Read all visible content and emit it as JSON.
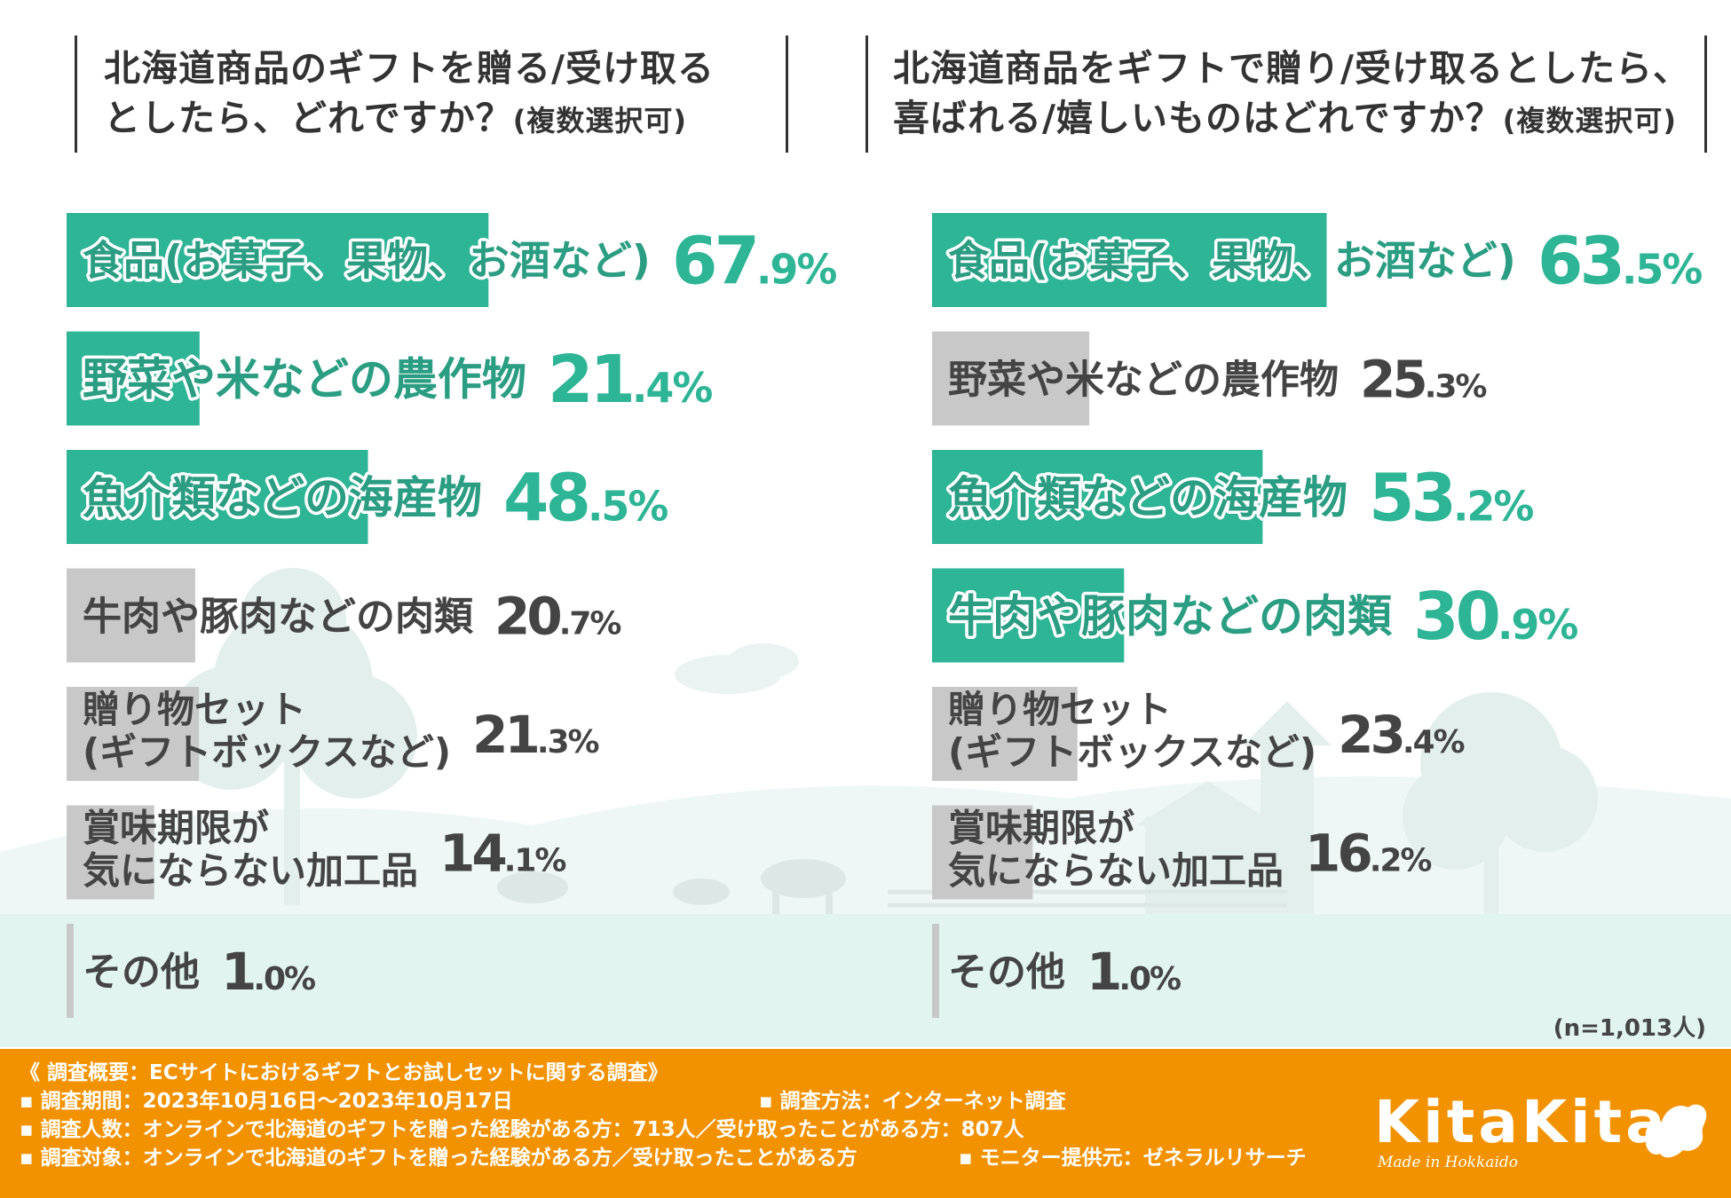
{
  "colors": {
    "accent": "#2db596",
    "gray_bar": "#c8c8c8",
    "dark_text": "#444444",
    "footer": "#f39200",
    "bg_teal": "#e2f4f0"
  },
  "chart_data": [
    {
      "type": "bar",
      "title": "北海道商品のギフトを贈る/受け取るとしたら、どれですか？",
      "title_line1": "北海道商品のギフトを贈る/受け取る",
      "title_line2": "としたら、どれですか？",
      "title_note": "(複数選択可)",
      "unit": "%",
      "xlim": [
        0,
        100
      ],
      "categories": [
        "食品(お菓子、果物、お酒など)",
        "野菜や米などの農作物",
        "魚介類などの海産物",
        "牛肉や豚肉などの肉類",
        "贈り物セット(ギフトボックスなど)",
        "賞味期限が気にならない加工品",
        "その他"
      ],
      "label_lines": [
        [
          "食品(お菓子、果物、お酒など)"
        ],
        [
          "野菜や米などの農作物"
        ],
        [
          "魚介類などの海産物"
        ],
        [
          "牛肉や豚肉などの肉類"
        ],
        [
          "贈り物セット",
          "(ギフトボックスなど)"
        ],
        [
          "賞味期限が",
          "気にならない加工品"
        ],
        [
          "その他"
        ]
      ],
      "values": [
        67.9,
        21.4,
        48.5,
        20.7,
        21.3,
        14.1,
        1.0
      ],
      "highlighted": [
        true,
        true,
        true,
        false,
        false,
        false,
        false
      ]
    },
    {
      "type": "bar",
      "title": "北海道商品をギフトで贈り/受け取るとしたら、喜ばれる/嬉しいものはどれですか？",
      "title_line1": "北海道商品をギフトで贈り/受け取るとしたら、",
      "title_line2": "喜ばれる/嬉しいものはどれですか？",
      "title_note": "(複数選択可)",
      "unit": "%",
      "xlim": [
        0,
        100
      ],
      "categories": [
        "食品(お菓子、果物、お酒など)",
        "野菜や米などの農作物",
        "魚介類などの海産物",
        "牛肉や豚肉などの肉類",
        "贈り物セット(ギフトボックスなど)",
        "賞味期限が気にならない加工品",
        "その他"
      ],
      "label_lines": [
        [
          "食品(お菓子、果物、お酒など)"
        ],
        [
          "野菜や米などの農作物"
        ],
        [
          "魚介類などの海産物"
        ],
        [
          "牛肉や豚肉などの肉類"
        ],
        [
          "贈り物セット",
          "(ギフトボックスなど)"
        ],
        [
          "賞味期限が",
          "気にならない加工品"
        ],
        [
          "その他"
        ]
      ],
      "values": [
        63.5,
        25.3,
        53.2,
        30.9,
        23.4,
        16.2,
        1.0
      ],
      "highlighted": [
        true,
        false,
        true,
        true,
        false,
        false,
        false
      ]
    }
  ],
  "sample_size": "(n=1,013人)",
  "footer": {
    "line1": "《 調査概要：ECサイトにおけるギフトとお試しセットに関する調査》",
    "period": "▪ 調査期間：2023年10月16日～2023年10月17日",
    "method": "▪ 調査方法：インターネット調査",
    "respondents": "▪ 調査人数：オンラインで北海道のギフトを贈った経験がある方：713人／受け取ったことがある方：807人",
    "target": "▪ 調査対象：オンラインで北海道のギフトを贈った経験がある方／受け取ったことがある方",
    "provider": "▪ モニター提供元：ゼネラルリサーチ"
  },
  "logo": {
    "name": "KitaKita",
    "tagline": "Made in Hokkaido"
  }
}
